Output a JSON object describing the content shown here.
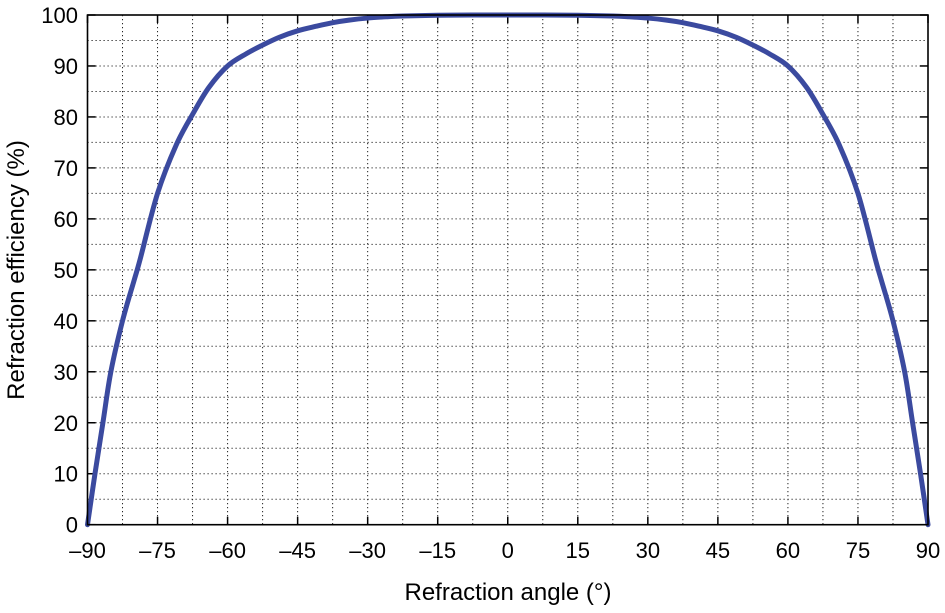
{
  "chart_data": {
    "type": "line",
    "title": "",
    "xlabel": "Refraction angle (°)",
    "ylabel": "Refraction efficiency (%)",
    "xlim": [
      -90,
      90
    ],
    "ylim": [
      0,
      100
    ],
    "grid": true,
    "grid_style": "dotted",
    "x_ticks": [
      -90,
      -75,
      -60,
      -45,
      -30,
      -15,
      0,
      15,
      30,
      45,
      60,
      75,
      90
    ],
    "x_tick_labels": [
      "–90",
      "–75",
      "–60",
      "–45",
      "–30",
      "–15",
      "0",
      "15",
      "30",
      "45",
      "60",
      "75",
      "90"
    ],
    "x_minor_step": 7.5,
    "y_ticks": [
      0,
      10,
      20,
      30,
      40,
      50,
      60,
      70,
      80,
      90,
      100
    ],
    "y_tick_labels": [
      "0",
      "10",
      "20",
      "30",
      "40",
      "50",
      "60",
      "70",
      "80",
      "90",
      "100"
    ],
    "y_minor_step": 5,
    "legend": null,
    "series": [
      {
        "name": "Refraction efficiency",
        "color": "#3b4a9f",
        "x": [
          -90,
          -88.4,
          -86.7,
          -85,
          -82.5,
          -80,
          -78.75,
          -75,
          -71,
          -67.5,
          -64,
          -60,
          -56,
          -52.5,
          -49,
          -45,
          -41,
          -37.5,
          -34,
          -30,
          -26,
          -22.5,
          -15,
          -7.5,
          0,
          7.5,
          15,
          22.5,
          26,
          30,
          34,
          37.5,
          41,
          45,
          49,
          52.5,
          56,
          60,
          64,
          67.5,
          71,
          75,
          78.75,
          80,
          82.5,
          85,
          86.7,
          88.4,
          90
        ],
        "y": [
          0,
          10,
          20,
          30,
          40,
          48,
          52,
          65,
          74.5,
          80.5,
          85.8,
          90,
          92.4,
          94.1,
          95.6,
          96.9,
          97.8,
          98.5,
          99.0,
          99.4,
          99.65,
          99.8,
          99.95,
          100,
          100,
          100,
          99.95,
          99.8,
          99.65,
          99.4,
          99.0,
          98.5,
          97.8,
          96.9,
          95.6,
          94.1,
          92.4,
          90,
          85.8,
          80.5,
          74.5,
          65,
          52,
          48,
          40,
          30,
          20,
          10,
          0
        ]
      }
    ]
  }
}
